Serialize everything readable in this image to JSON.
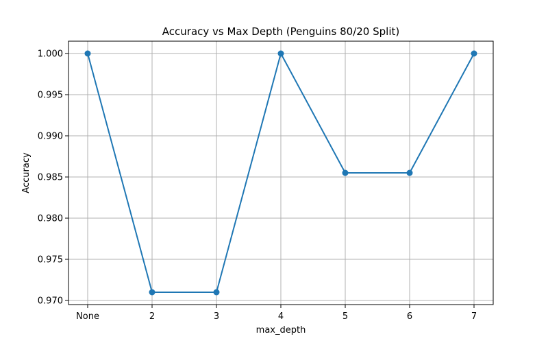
{
  "chart_data": {
    "type": "line",
    "title": "Accuracy vs Max Depth (Penguins 80/20 Split)",
    "xlabel": "max_depth",
    "ylabel": "Accuracy",
    "categories": [
      "None",
      "2",
      "3",
      "4",
      "5",
      "6",
      "7"
    ],
    "series": [
      {
        "values": [
          1.0,
          0.971,
          0.971,
          1.0,
          0.9855,
          0.9855,
          1.0
        ]
      }
    ],
    "ylim": [
      0.9695,
      1.0015
    ],
    "yticks": [
      "0.970",
      "0.975",
      "0.980",
      "0.985",
      "0.990",
      "0.995",
      "1.000"
    ],
    "grid": true,
    "line_color": "#1f77b4",
    "marker": "circle"
  }
}
